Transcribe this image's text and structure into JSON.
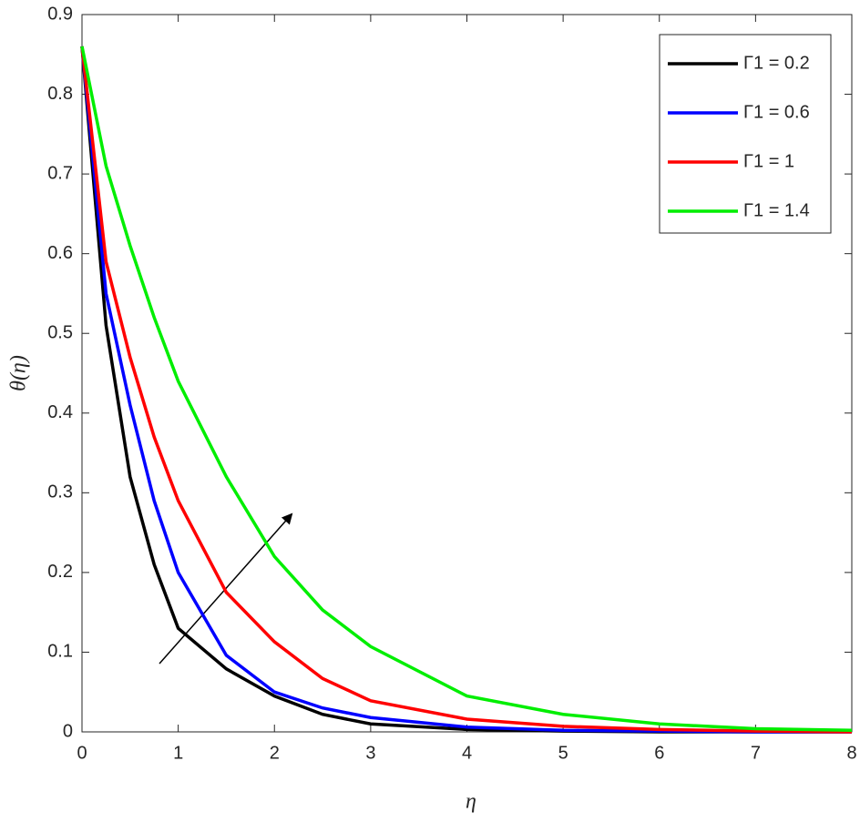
{
  "chart_data": {
    "type": "line",
    "x_label": "η",
    "y_label": "θ(η)",
    "x": [
      0,
      0.25,
      0.5,
      0.75,
      1,
      1.5,
      2,
      2.5,
      3,
      4,
      5,
      6,
      7,
      8
    ],
    "series": [
      {
        "name": "Γ1 = 0.2",
        "color": "#000000",
        "values": [
          0.86,
          0.51,
          0.32,
          0.21,
          0.13,
          0.079,
          0.045,
          0.022,
          0.01,
          0.003,
          0.001,
          0,
          0,
          0
        ]
      },
      {
        "name": "Γ1 = 0.6",
        "color": "#0000ff",
        "values": [
          0.86,
          0.55,
          0.41,
          0.29,
          0.2,
          0.096,
          0.05,
          0.03,
          0.018,
          0.006,
          0.002,
          0.001,
          0,
          0
        ]
      },
      {
        "name": "Γ1 = 1",
        "color": "#ff0000",
        "values": [
          0.86,
          0.59,
          0.47,
          0.37,
          0.29,
          0.175,
          0.113,
          0.067,
          0.039,
          0.016,
          0.007,
          0.003,
          0.001,
          0
        ]
      },
      {
        "name": "Γ1 = 1.4",
        "color": "#00ee00",
        "values": [
          0.86,
          0.71,
          0.61,
          0.52,
          0.44,
          0.32,
          0.22,
          0.153,
          0.107,
          0.045,
          0.022,
          0.01,
          0.004,
          0.002
        ]
      }
    ],
    "xlim": [
      0,
      8
    ],
    "ylim": [
      0,
      0.9
    ],
    "xticks": [
      0,
      1,
      2,
      3,
      4,
      5,
      6,
      7,
      8
    ],
    "yticks": [
      0,
      0.1,
      0.2,
      0.3,
      0.4,
      0.5,
      0.6,
      0.7,
      0.8,
      0.9
    ],
    "legend": "upper right"
  }
}
